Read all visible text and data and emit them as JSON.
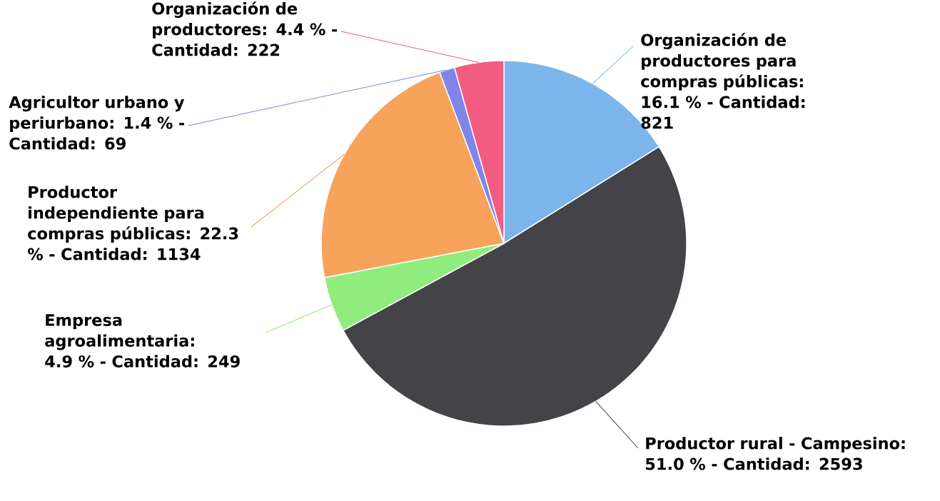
{
  "chart_data": {
    "type": "pie",
    "categories": [
      "Organización de productores para compras públicas: 16.1 % - Cantidad: 821",
      "Productor rural - Campesino: 51.0 % - Cantidad: 2593",
      "Empresa agroalimentaria: 4.9 % - Cantidad: 249",
      "Productor independiente para compras públicas: 22.3 % - Cantidad: 1134",
      "Agricultor urbano y periurbano: 1.4 % - Cantidad: 69",
      "Organización de productores: 4.4 % - Cantidad: 222"
    ],
    "values": [
      821,
      2593,
      249,
      1134,
      69,
      222
    ],
    "colors": [
      "#7cb5ec",
      "#434348",
      "#90ed7d",
      "#f7a35c",
      "#8085e9",
      "#f15c80"
    ]
  }
}
